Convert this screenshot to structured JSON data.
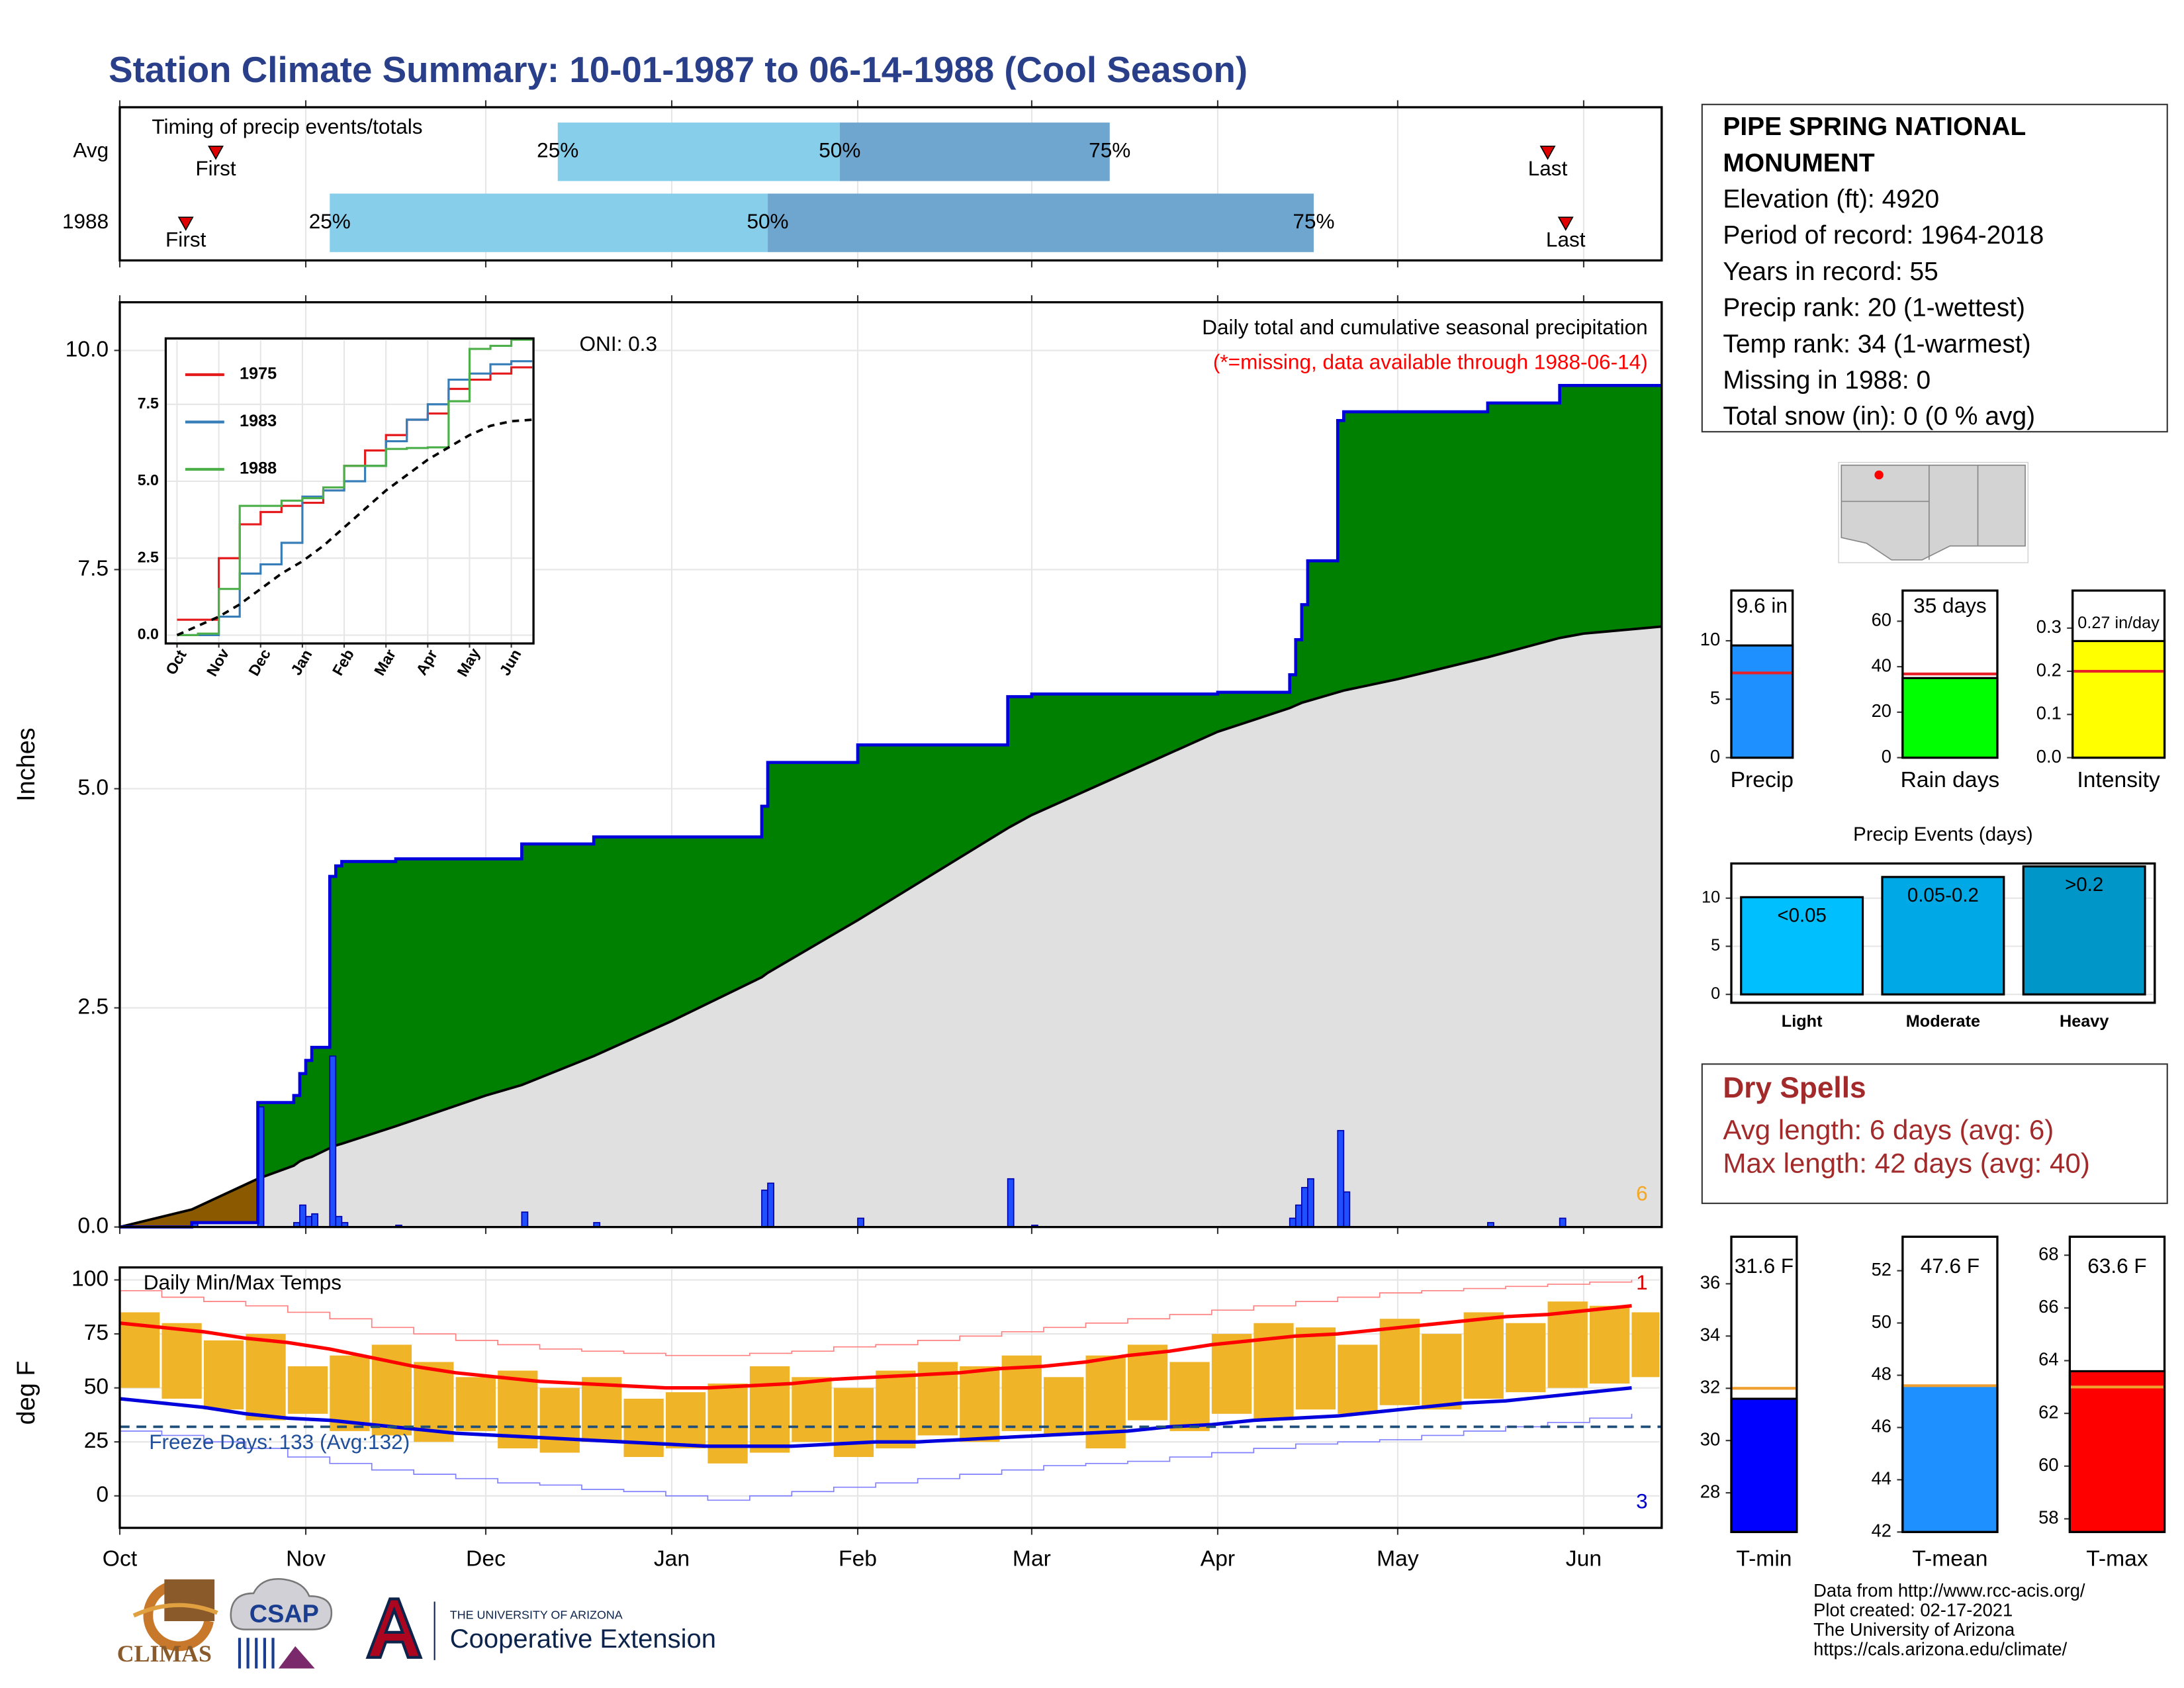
{
  "title": "Station Climate Summary: 10-01-1987 to 06-14-1988 (Cool Season)",
  "station": {
    "name": "PIPE SPRING NATIONAL MONUMENT",
    "lines": [
      "Elevation (ft): 4920",
      "Period of record: 1964-2018",
      "Years in record: 55",
      "Precip rank: 20 (1-wettest)",
      "Temp rank: 34 (1-warmest)",
      "Missing in 1988: 0",
      "Total snow (in): 0 (0 % avg)"
    ]
  },
  "dry_spells": {
    "title": "Dry Spells",
    "lines": [
      "Avg length: 6 days (avg: 6)",
      "Max length: 42 days (avg: 40)"
    ]
  },
  "footer": {
    "credits": [
      "Data from http://www.rcc-acis.org/",
      "Plot created: 02-17-2021",
      "The University of Arizona",
      "https://cals.arizona.edu/climate/"
    ],
    "logos": [
      "CLIMAS",
      "CSAP",
      "THE UNIVERSITY OF ARIZONA",
      "Cooperative Extension"
    ]
  },
  "chart_data": [
    {
      "type": "timing",
      "title": "Timing of precip events/totals",
      "categories": [
        "Avg",
        "1988"
      ],
      "marker_labels": [
        "First",
        "25%",
        "50%",
        "75%",
        "Last"
      ],
      "values": [
        [
          16,
          73,
          120,
          165,
          238
        ],
        [
          11,
          35,
          108,
          199,
          241
        ]
      ],
      "colors": [
        "#87ceeb",
        "#6fa6cf"
      ],
      "marker_color": "#e00000",
      "xlim": [
        0,
        257
      ],
      "xticks": [
        0,
        31,
        61,
        92,
        123,
        152,
        183,
        213,
        244
      ],
      "grid": true
    },
    {
      "type": "cumulative",
      "title": "Daily total and cumulative seasonal precipitation",
      "subtitle": "(*=missing, data available through 1988-06-14)",
      "annotation": "ONI: 0.3",
      "corner_note": "6",
      "ylabel": "Inches",
      "x": [
        0,
        12,
        23,
        29,
        30,
        31,
        32,
        35,
        36,
        37,
        46,
        61,
        67,
        79,
        92,
        107,
        108,
        123,
        148,
        152,
        183,
        195,
        196,
        197,
        198,
        203,
        204,
        213,
        228,
        240,
        244,
        257
      ],
      "series": [
        {
          "color": "#0000dd",
          "values": [
            0,
            0.05,
            1.42,
            1.5,
            1.75,
            1.9,
            2.05,
            4.0,
            4.12,
            4.17,
            4.2,
            4.2,
            4.37,
            4.45,
            4.45,
            4.8,
            5.3,
            5.5,
            6.05,
            6.08,
            6.1,
            6.3,
            6.7,
            7.1,
            7.6,
            9.2,
            9.3,
            9.3,
            9.4,
            9.6,
            9.6,
            9.6
          ]
        },
        {
          "color": "#000000",
          "values": [
            0,
            0.2,
            0.55,
            0.7,
            0.75,
            0.78,
            0.8,
            0.9,
            0.93,
            0.95,
            1.15,
            1.5,
            1.62,
            1.95,
            2.35,
            2.85,
            2.9,
            3.5,
            4.55,
            4.7,
            5.65,
            5.92,
            5.95,
            5.98,
            6.0,
            6.1,
            6.12,
            6.25,
            6.5,
            6.72,
            6.77,
            6.85
          ]
        }
      ],
      "daily": {
        "color": "#1f4fff",
        "x": [
          12,
          23,
          29,
          30,
          31,
          32,
          35,
          36,
          37,
          46,
          67,
          79,
          107,
          108,
          123,
          148,
          152,
          195,
          196,
          197,
          198,
          203,
          204,
          228,
          240
        ],
        "values": [
          0.05,
          1.37,
          0.05,
          0.25,
          0.12,
          0.15,
          1.95,
          0.12,
          0.05,
          0.02,
          0.17,
          0.05,
          0.42,
          0.5,
          0.1,
          0.55,
          0.02,
          0.1,
          0.25,
          0.45,
          0.55,
          1.1,
          0.4,
          0.05,
          0.1
        ]
      },
      "fills": {
        "above": "#008000",
        "below": "#8b5a00",
        "base": "#e0e0e0"
      },
      "xlim": [
        0,
        257
      ],
      "xticks": [
        0,
        31,
        61,
        92,
        123,
        152,
        183,
        213,
        244
      ],
      "ylim": [
        0,
        10.55
      ],
      "yticks": [
        {
          "value": 0,
          "label": "0.0"
        },
        2.5,
        {
          "value": 5,
          "label": "5.0"
        },
        7.5,
        {
          "value": 10,
          "label": "10.0"
        }
      ],
      "grid": true
    },
    {
      "type": "line",
      "x": [
        0,
        0.5,
        1,
        1.5,
        2,
        2.5,
        3,
        3.5,
        4,
        4.5,
        5,
        5.5,
        6,
        6.5,
        7,
        7.5,
        8,
        8.5
      ],
      "series": [
        {
          "name": "1975",
          "color": "#e41a1c",
          "values": [
            0.5,
            0.5,
            2.5,
            3.6,
            4.0,
            4.2,
            4.3,
            4.7,
            5.5,
            6.0,
            6.5,
            7.0,
            7.2,
            8.0,
            8.3,
            8.5,
            8.7,
            8.7
          ]
        },
        {
          "name": "1983",
          "color": "#377eb8",
          "values": [
            0,
            0,
            0.6,
            2.0,
            2.3,
            3.0,
            4.5,
            4.7,
            5.0,
            5.5,
            6.3,
            7.0,
            7.5,
            8.3,
            8.5,
            8.8,
            8.9,
            8.9
          ]
        },
        {
          "name": "1988",
          "color": "#4daf4a",
          "values": [
            0,
            0.05,
            1.5,
            4.2,
            4.2,
            4.37,
            4.45,
            4.8,
            5.5,
            5.5,
            6.05,
            6.08,
            6.1,
            7.6,
            9.3,
            9.4,
            9.6,
            9.6
          ]
        },
        {
          "color": "#000000",
          "dash": true,
          "values": [
            0,
            0.3,
            0.6,
            1.0,
            1.5,
            2.0,
            2.4,
            2.9,
            3.5,
            4.1,
            4.7,
            5.2,
            5.7,
            6.1,
            6.5,
            6.8,
            6.95,
            7.0
          ]
        }
      ],
      "xlim": [
        -0.27,
        8.53
      ],
      "xticks": [
        {
          "value": 0,
          "label": "Oct"
        },
        {
          "value": 1,
          "label": "Nov"
        },
        {
          "value": 2,
          "label": "Dec"
        },
        {
          "value": 3,
          "label": "Jan"
        },
        {
          "value": 4,
          "label": "Feb"
        },
        {
          "value": 5,
          "label": "Mar"
        },
        {
          "value": 6,
          "label": "Apr"
        },
        {
          "value": 7,
          "label": "May"
        },
        {
          "value": 8,
          "label": "Jun"
        }
      ],
      "ylim": [
        -0.27,
        9.64
      ],
      "yticks": [
        {
          "value": 0,
          "label": "0.0"
        },
        2.5,
        {
          "value": 5,
          "label": "5.0"
        },
        7.5
      ],
      "grid": true
    },
    {
      "type": "bar",
      "categories": [
        "Precip"
      ],
      "values": [
        9.6
      ],
      "value_labels": [
        "9.6 in"
      ],
      "color": "#1e90ff",
      "average": 7.25,
      "average_color": "#e8202a",
      "ylim": [
        0,
        14.3
      ],
      "yticks": [
        0,
        5,
        10
      ]
    },
    {
      "type": "bar",
      "categories": [
        "Rain days"
      ],
      "values": [
        35
      ],
      "value_labels": [
        "35 days"
      ],
      "color": "#00ff00",
      "average": 36.8,
      "average_color": "#e8202a",
      "ylim": [
        0,
        73.5
      ],
      "yticks": [
        0,
        20,
        40,
        60
      ]
    },
    {
      "type": "bar",
      "categories": [
        "Intensity"
      ],
      "values": [
        0.27
      ],
      "value_labels": [
        "0.27 in/day"
      ],
      "color": "#ffff00",
      "average": 0.2,
      "average_color": "#e8202a",
      "ylim": [
        0,
        0.387
      ],
      "yticks": [
        {
          "value": 0,
          "label": "0.0"
        },
        0.1,
        0.2,
        0.3
      ]
    },
    {
      "type": "bar",
      "title": "Precip Events (days)",
      "categories": [
        "Light",
        "Moderate",
        "Heavy"
      ],
      "values": [
        10.1,
        12.2,
        13.3
      ],
      "bar_labels": [
        "<0.05",
        "0.05-0.2",
        ">0.2"
      ],
      "colors": [
        "#00bfff",
        "#00a9e6",
        "#0096c8"
      ],
      "ylim": [
        -0.87,
        13.6
      ],
      "yticks": [
        0,
        5,
        10
      ],
      "grid": true
    },
    {
      "type": "temperature",
      "title": "Daily Min/Max Temps",
      "annotation": "Freeze Days: 133 (Avg:132)",
      "ylabel": "deg F",
      "freeze": 32,
      "corner_notes": [
        "1",
        "3"
      ],
      "x": [
        0,
        7,
        14,
        21,
        28,
        35,
        42,
        49,
        56,
        63,
        70,
        77,
        84,
        91,
        98,
        105,
        112,
        119,
        126,
        133,
        140,
        147,
        154,
        161,
        168,
        175,
        182,
        189,
        196,
        203,
        210,
        217,
        224,
        231,
        238,
        245,
        252
      ],
      "bars": {
        "color": "#f0b429",
        "max": [
          85,
          80,
          72,
          75,
          60,
          65,
          70,
          62,
          55,
          58,
          50,
          55,
          45,
          48,
          52,
          60,
          55,
          50,
          58,
          62,
          60,
          65,
          55,
          65,
          70,
          62,
          75,
          80,
          78,
          70,
          82,
          75,
          85,
          80,
          90,
          88,
          85
        ],
        "min": [
          50,
          45,
          40,
          35,
          38,
          30,
          28,
          25,
          30,
          22,
          20,
          25,
          18,
          22,
          15,
          20,
          25,
          18,
          22,
          28,
          25,
          30,
          28,
          22,
          35,
          30,
          38,
          35,
          40,
          38,
          42,
          40,
          45,
          48,
          50,
          52,
          55
        ]
      },
      "series": [
        {
          "color": "#ff0000",
          "width": 2.5,
          "values": [
            80,
            78,
            76,
            73,
            71,
            68,
            64,
            60,
            57,
            55,
            53,
            52,
            51,
            50,
            50,
            51,
            52,
            54,
            55,
            56,
            57,
            59,
            60,
            62,
            65,
            67,
            70,
            72,
            74,
            75,
            77,
            79,
            81,
            83,
            84,
            86,
            88
          ]
        },
        {
          "color": "#0000dd",
          "width": 2.5,
          "values": [
            45,
            43,
            41,
            38,
            36,
            35,
            33,
            31,
            29,
            28,
            27,
            26,
            25,
            24,
            23,
            23,
            23,
            24,
            25,
            25,
            26,
            27,
            28,
            29,
            30,
            32,
            33,
            35,
            36,
            37,
            39,
            41,
            43,
            44,
            46,
            48,
            50
          ]
        },
        {
          "color": "#ff8080",
          "width": 0.8,
          "values": [
            95,
            92,
            90,
            88,
            85,
            82,
            78,
            75,
            72,
            70,
            68,
            67,
            66,
            65,
            65,
            66,
            67,
            69,
            70,
            72,
            74,
            76,
            78,
            80,
            82,
            84,
            86,
            88,
            90,
            92,
            94,
            95,
            96,
            97,
            98,
            99,
            100
          ]
        },
        {
          "color": "#8080ff",
          "width": 0.8,
          "values": [
            30,
            28,
            25,
            22,
            18,
            15,
            12,
            10,
            8,
            6,
            5,
            3,
            2,
            0,
            -2,
            0,
            2,
            4,
            6,
            8,
            10,
            12,
            14,
            15,
            16,
            18,
            20,
            22,
            24,
            25,
            26,
            28,
            30,
            32,
            34,
            36,
            38
          ]
        }
      ],
      "xlim": [
        0,
        257
      ],
      "xticks": [
        {
          "value": 0,
          "label": "Oct"
        },
        {
          "value": 31,
          "label": "Nov"
        },
        {
          "value": 61,
          "label": "Dec"
        },
        {
          "value": 92,
          "label": "Jan"
        },
        {
          "value": 123,
          "label": "Feb"
        },
        {
          "value": 152,
          "label": "Mar"
        },
        {
          "value": 183,
          "label": "Apr"
        },
        {
          "value": 213,
          "label": "May"
        },
        {
          "value": 244,
          "label": "Jun"
        }
      ],
      "ylim": [
        -14.8,
        105.8
      ],
      "yticks": [
        0,
        25,
        50,
        75,
        100
      ],
      "grid": true
    },
    {
      "type": "bar",
      "categories": [
        "T-min"
      ],
      "values": [
        31.6
      ],
      "value_labels": [
        "31.6 F"
      ],
      "color": "#0000ff",
      "average": 32.0,
      "average_color": "#f0a030",
      "ylim": [
        26.5,
        37.8
      ],
      "yticks": [
        28,
        30,
        32,
        34,
        36
      ]
    },
    {
      "type": "bar",
      "categories": [
        "T-mean"
      ],
      "values": [
        47.6
      ],
      "value_labels": [
        "47.6 F"
      ],
      "color": "#1e90ff",
      "average": 47.6,
      "average_color": "#f0a030",
      "ylim": [
        42,
        53.3
      ],
      "yticks": [
        42,
        44,
        46,
        48,
        50,
        52
      ]
    },
    {
      "type": "bar",
      "categories": [
        "T-max"
      ],
      "values": [
        63.6
      ],
      "value_labels": [
        "63.6 F"
      ],
      "color": "#ff0000",
      "average": 63.0,
      "average_color": "#f0a030",
      "ylim": [
        57.5,
        68.7
      ],
      "yticks": [
        58,
        60,
        62,
        64,
        66,
        68
      ]
    }
  ]
}
